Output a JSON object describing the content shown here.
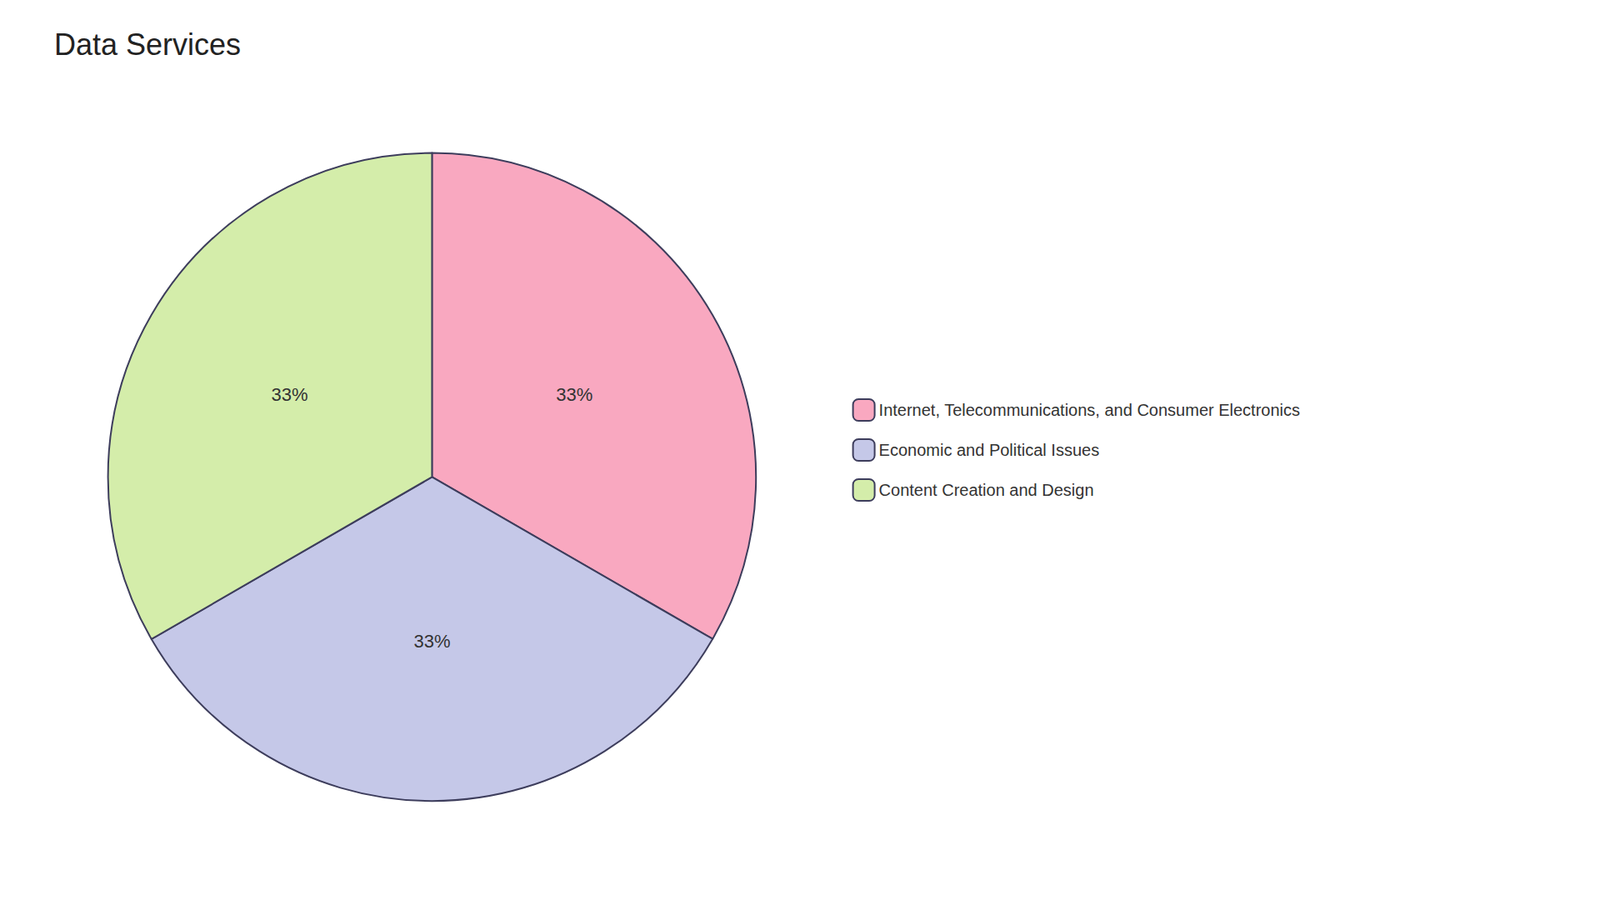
{
  "chart_data": {
    "type": "pie",
    "title": "Data Services",
    "categories": [
      "Internet, Telecommunications, and Consumer Electronics",
      "Economic and Political Issues",
      "Content Creation and Design"
    ],
    "values": [
      33.33,
      33.33,
      33.34
    ],
    "value_labels": [
      "33%",
      "33%",
      "33%"
    ],
    "colors": [
      "#F9A8C0",
      "#C5C8E8",
      "#D4EDAA"
    ],
    "data_labels": true,
    "legend": "right"
  }
}
